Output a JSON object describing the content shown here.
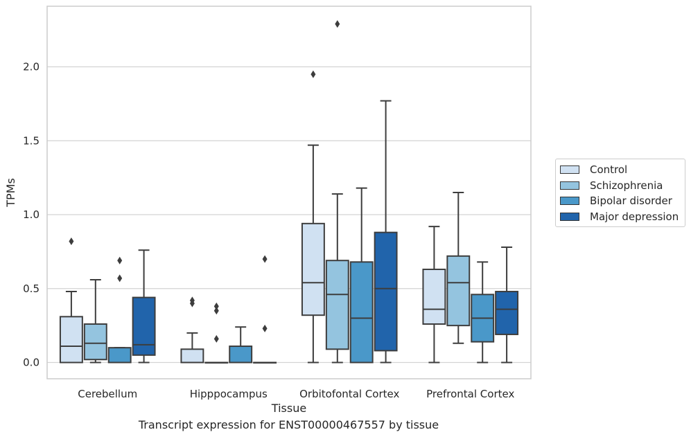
{
  "caption": "Transcript expression for ENST00000467557 by tissue",
  "chart_data": {
    "type": "box",
    "title": "",
    "xlabel": "Tissue",
    "ylabel": "TPMs",
    "categories": [
      "Cerebellum",
      "Hipppocampus",
      "Orbitofontal Cortex",
      "Prefrontal Cortex"
    ],
    "ylim": [
      -0.11,
      2.41
    ],
    "yticks": [
      0.0,
      0.5,
      1.0,
      1.5,
      2.0
    ],
    "ytick_labels": [
      "0.0",
      "0.5",
      "1.0",
      "1.5",
      "2.0"
    ],
    "grid": "horizontal",
    "legend_position": "right",
    "series": [
      {
        "name": "Control",
        "color": "#d0e1f2",
        "boxes": [
          {
            "whislo": 0.0,
            "q1": 0.0,
            "med": 0.11,
            "q3": 0.31,
            "whishi": 0.48,
            "fliers": [
              0.82
            ]
          },
          {
            "whislo": 0.0,
            "q1": 0.0,
            "med": 0.0,
            "q3": 0.09,
            "whishi": 0.2,
            "fliers": [
              0.42,
              0.4
            ]
          },
          {
            "whislo": 0.0,
            "q1": 0.32,
            "med": 0.54,
            "q3": 0.94,
            "whishi": 1.47,
            "fliers": [
              1.95
            ]
          },
          {
            "whislo": 0.0,
            "q1": 0.26,
            "med": 0.36,
            "q3": 0.63,
            "whishi": 0.92,
            "fliers": []
          }
        ]
      },
      {
        "name": "Schizophrenia",
        "color": "#94c4df",
        "boxes": [
          {
            "whislo": 0.0,
            "q1": 0.02,
            "med": 0.13,
            "q3": 0.26,
            "whishi": 0.56,
            "fliers": []
          },
          {
            "whislo": 0.0,
            "q1": 0.0,
            "med": 0.0,
            "q3": 0.0,
            "whishi": 0.0,
            "fliers": [
              0.38,
              0.35,
              0.16
            ]
          },
          {
            "whislo": 0.0,
            "q1": 0.09,
            "med": 0.46,
            "q3": 0.69,
            "whishi": 1.14,
            "fliers": [
              2.29
            ]
          },
          {
            "whislo": 0.13,
            "q1": 0.25,
            "med": 0.54,
            "q3": 0.72,
            "whishi": 1.15,
            "fliers": []
          }
        ]
      },
      {
        "name": "Bipolar disorder",
        "color": "#4a98c9",
        "boxes": [
          {
            "whislo": 0.0,
            "q1": 0.0,
            "med": 0.0,
            "q3": 0.1,
            "whishi": 0.1,
            "fliers": [
              0.69,
              0.57
            ]
          },
          {
            "whislo": 0.0,
            "q1": 0.0,
            "med": 0.0,
            "q3": 0.11,
            "whishi": 0.24,
            "fliers": []
          },
          {
            "whislo": 0.0,
            "q1": 0.0,
            "med": 0.3,
            "q3": 0.68,
            "whishi": 1.18,
            "fliers": []
          },
          {
            "whislo": 0.0,
            "q1": 0.14,
            "med": 0.3,
            "q3": 0.46,
            "whishi": 0.68,
            "fliers": []
          }
        ]
      },
      {
        "name": "Major depression",
        "color": "#2164ab",
        "boxes": [
          {
            "whislo": 0.0,
            "q1": 0.05,
            "med": 0.12,
            "q3": 0.44,
            "whishi": 0.76,
            "fliers": []
          },
          {
            "whislo": 0.0,
            "q1": 0.0,
            "med": 0.0,
            "q3": 0.0,
            "whishi": 0.0,
            "fliers": [
              0.7,
              0.23
            ]
          },
          {
            "whislo": 0.0,
            "q1": 0.08,
            "med": 0.5,
            "q3": 0.88,
            "whishi": 1.77,
            "fliers": []
          },
          {
            "whislo": 0.0,
            "q1": 0.19,
            "med": 0.36,
            "q3": 0.48,
            "whishi": 0.78,
            "fliers": []
          }
        ]
      }
    ]
  }
}
